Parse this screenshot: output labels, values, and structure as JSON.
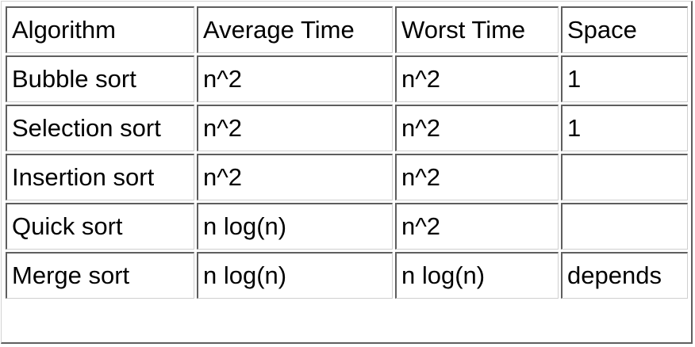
{
  "table": {
    "headers": [
      "Algorithm",
      "Average Time",
      "Worst Time",
      "Space"
    ],
    "rows": [
      [
        "Bubble sort",
        "n^2",
        "n^2",
        "1"
      ],
      [
        "Selection sort",
        "n^2",
        "n^2",
        "1"
      ],
      [
        "Insertion sort",
        "n^2",
        "n^2",
        ""
      ],
      [
        "Quick sort",
        "n log(n)",
        "n^2",
        ""
      ],
      [
        "Merge sort",
        "n log(n)",
        "n log(n)",
        "depends"
      ]
    ]
  }
}
